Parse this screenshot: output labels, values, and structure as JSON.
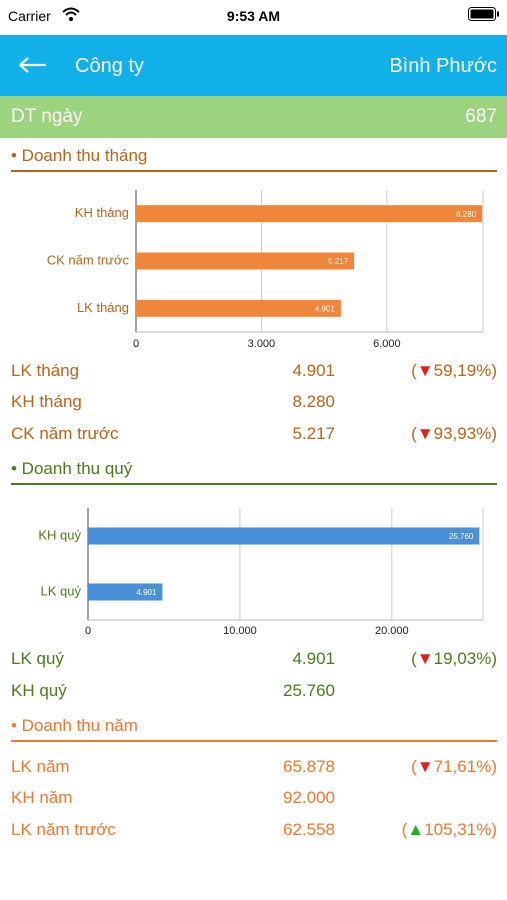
{
  "status_bar": {
    "carrier": "Carrier",
    "time": "9:53 AM"
  },
  "header": {
    "title": "Công ty",
    "region": "Bình Phước"
  },
  "summary": {
    "label": "DT ngày",
    "value": "687"
  },
  "chart_data": [
    {
      "type": "bar",
      "orientation": "horizontal",
      "categories": [
        "KH tháng",
        "CK năm trước",
        "LK tháng"
      ],
      "values": [
        8280,
        5217,
        4901
      ],
      "value_labels": [
        "8.280",
        "5.217",
        "4.901"
      ],
      "color": "#f0863a",
      "label_color": "#b8651b",
      "xlim": [
        0,
        8300
      ],
      "xticks": [
        0,
        {
          "value": 3000,
          "label": "3.000"
        },
        {
          "value": 6000,
          "label": "6.000"
        }
      ],
      "grid": true
    },
    {
      "type": "bar",
      "orientation": "horizontal",
      "categories": [
        "KH quý",
        "LK quý"
      ],
      "values": [
        25760,
        4901
      ],
      "value_labels": [
        "25.760",
        "4.901"
      ],
      "color": "#4a90d9",
      "label_color": "#4a7c1f",
      "xlim": [
        0,
        26000
      ],
      "xticks": [
        0,
        {
          "value": 10000,
          "label": "10.000"
        },
        {
          "value": 20000,
          "label": "20.000"
        }
      ],
      "grid": true
    }
  ],
  "sections": [
    {
      "title": "• Doanh thu tháng",
      "color": "#b8651b",
      "rows": [
        {
          "label": "LK tháng",
          "value": "4.901",
          "change": "(▼59,19%)"
        },
        {
          "label": "KH tháng",
          "value": "8.280"
        },
        {
          "label": "CK năm trước",
          "value": "5.217",
          "change": "(▼93,93%)"
        }
      ]
    },
    {
      "title": "• Doanh thu quý",
      "color": "#4a7c1f",
      "rows": [
        {
          "label": "LK quý",
          "value": "4.901",
          "change": "(▼19,03%)"
        },
        {
          "label": "KH quý",
          "value": "25.760"
        }
      ]
    },
    {
      "title": "• Doanh thu năm",
      "color": "#f07830",
      "rows": [
        {
          "label": "LK năm",
          "value": "65.878",
          "change": "(▼71,61%)"
        },
        {
          "label": "KH năm",
          "value": "92.000"
        },
        {
          "label": "LK năm trước",
          "value": "62.558",
          "change": "(▲105,31%)"
        }
      ]
    }
  ]
}
